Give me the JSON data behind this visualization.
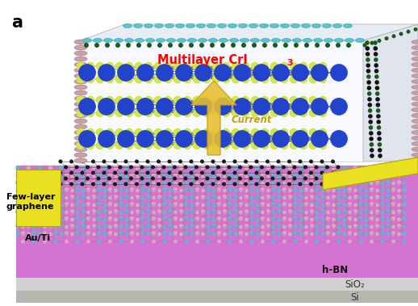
{
  "title_label": "a",
  "label_multilayer": "Multilayer CrI",
  "label_multilayer_sub": "3",
  "label_current": "Current",
  "label_few_layer": "Few-layer\ngraphene",
  "label_au_ti": "Au/Ti",
  "label_hbn": "h-BN",
  "label_sio2": "SiO₂",
  "label_si": "Si",
  "bg_color": "#ffffff",
  "cri3_blue": "#2244cc",
  "cri3_yellow": "#d4e840",
  "graphene_dark": "#222222",
  "graphene_green": "#2d6e2d",
  "tube_cyan": "#56c5d0",
  "tube_pink": "#c8a0a8",
  "hbn_magenta": "#d060cc",
  "hbn_dot_cyan": "#60b8d8",
  "hbn_dot_pink": "#e0a8c0",
  "sio2_color": "#d0d0d0",
  "si_color": "#b8b4b0",
  "au_color": "#e8e020",
  "arrow_color": "#e8c030",
  "arrow_edge": "#c8a010",
  "white_box": "#f8f8ff",
  "bond_color": "#666666"
}
